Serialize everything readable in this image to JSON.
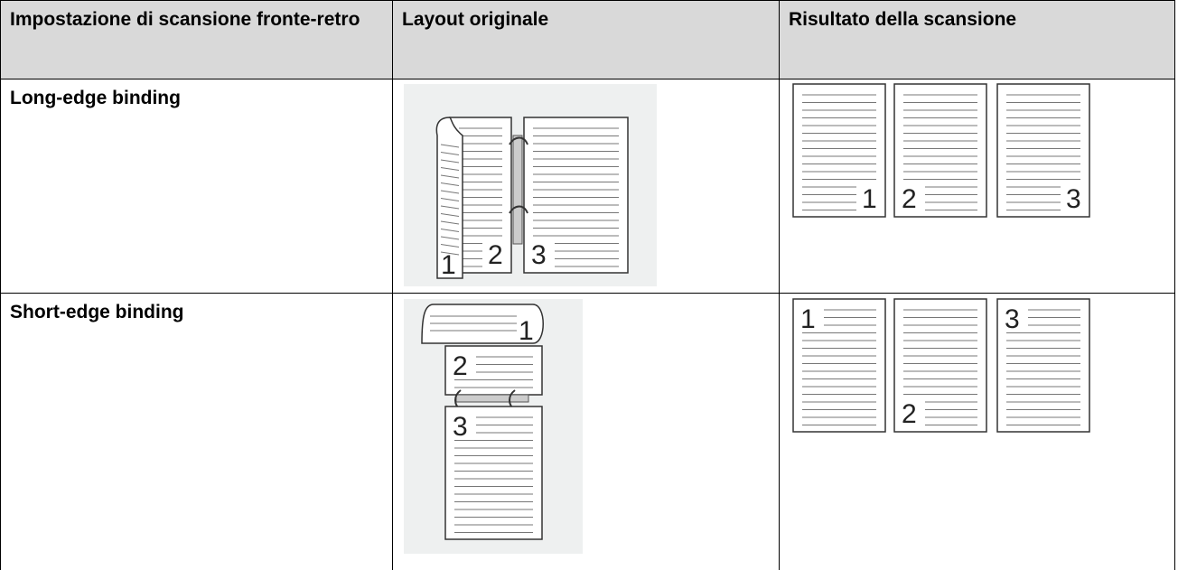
{
  "table": {
    "header": [
      "Impostazione di scansione fronte-retro",
      "Layout originale",
      "Risultato della scansione"
    ],
    "rows": [
      {
        "label": "Long-edge binding",
        "original": [
          "2",
          "3",
          "1"
        ],
        "result": [
          "1",
          "2",
          "3"
        ]
      },
      {
        "label": "Short-edge binding",
        "original": [
          "1",
          "2",
          "3"
        ],
        "result": [
          "1",
          "2",
          "3"
        ]
      }
    ]
  }
}
